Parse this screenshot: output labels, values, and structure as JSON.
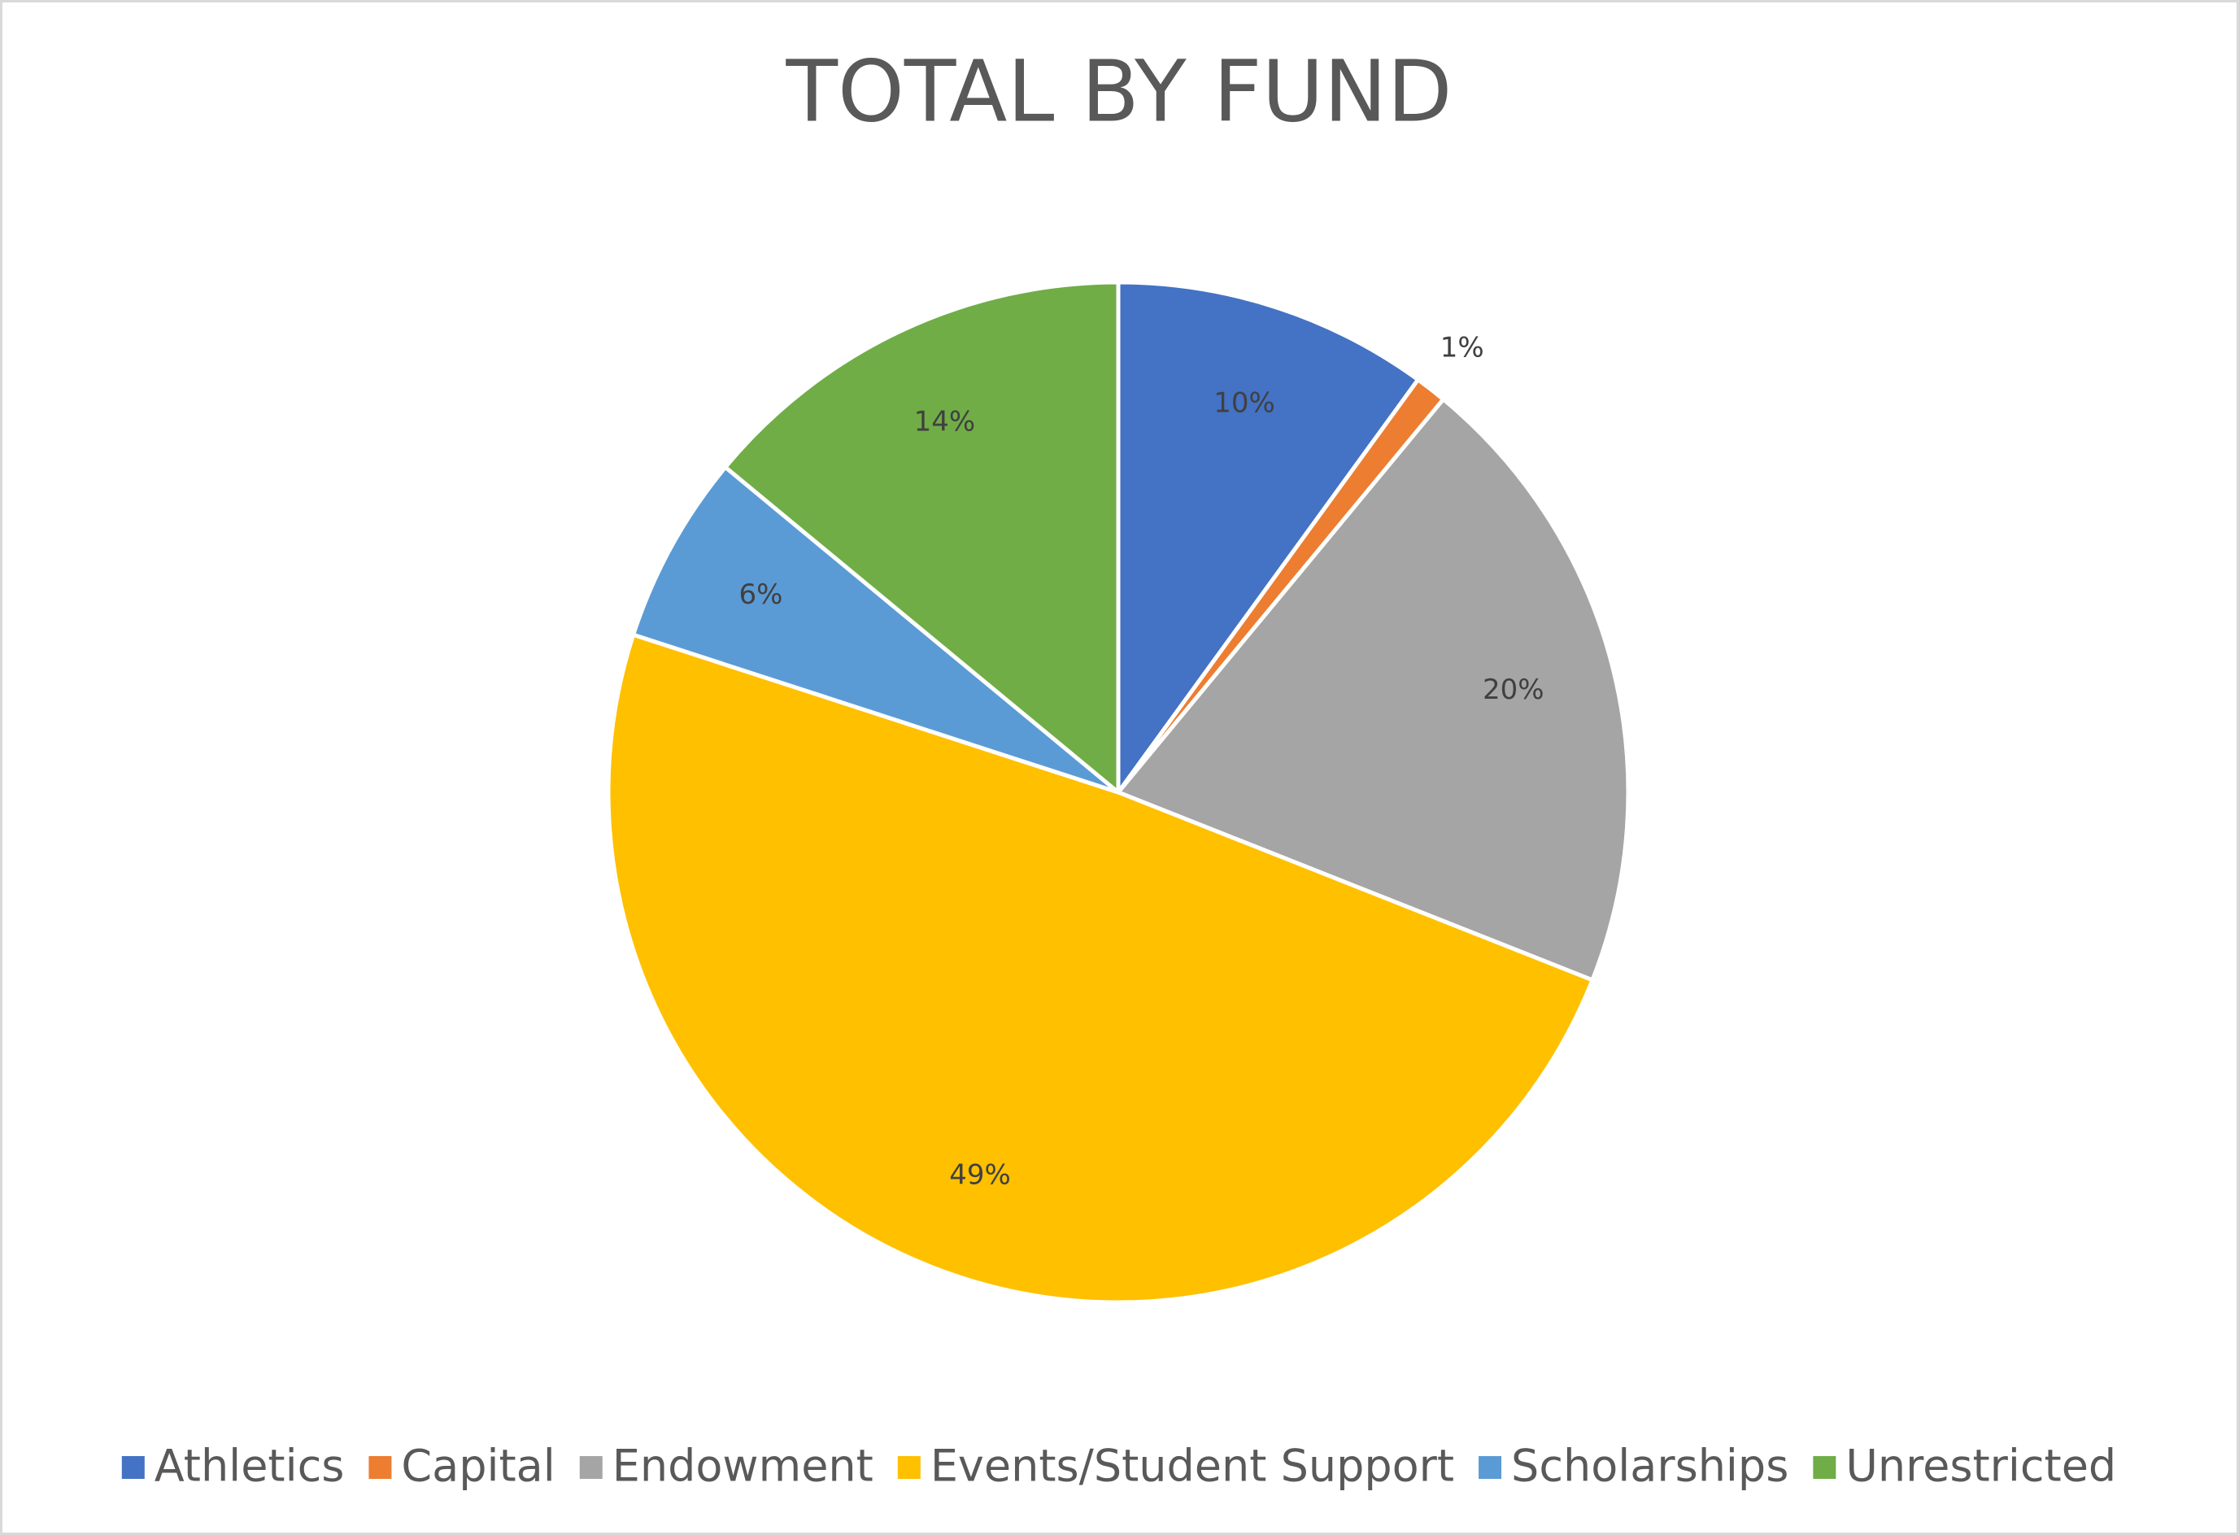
{
  "chart_data": {
    "type": "pie",
    "title": "TOTAL BY FUND",
    "categories": [
      "Athletics",
      "Capital",
      "Endowment",
      "Events/Student Support",
      "Scholarships",
      "Unrestricted"
    ],
    "values": [
      10,
      1,
      20,
      49,
      6,
      14
    ],
    "value_labels": [
      "10%",
      "1%",
      "20%",
      "49%",
      "6%",
      "14%"
    ],
    "colors": [
      "#4472c4",
      "#ed7d31",
      "#a5a5a5",
      "#ffc000",
      "#5b9bd5",
      "#70ad47"
    ],
    "legend": "bottom"
  }
}
